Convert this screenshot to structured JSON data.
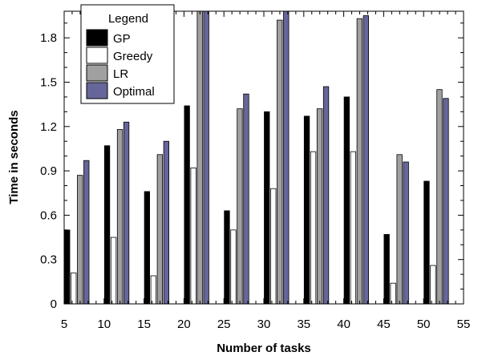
{
  "chart_data": {
    "type": "bar",
    "xlabel": "Number of tasks",
    "ylabel": "Time in seconds",
    "xlim": [
      5,
      55
    ],
    "ylim": [
      0,
      1.98
    ],
    "xticks": [
      5,
      10,
      15,
      20,
      25,
      30,
      35,
      40,
      45,
      50,
      55
    ],
    "yticks": [
      "0",
      "0.3",
      "0.6",
      "0.9",
      "1.2",
      "1.5",
      "1.8"
    ],
    "x": [
      5,
      10,
      15,
      20,
      25,
      30,
      35,
      40,
      45,
      50
    ],
    "series": [
      {
        "name": "GP",
        "color": "#000000",
        "values": [
          0.5,
          1.07,
          0.76,
          1.34,
          0.63,
          1.3,
          1.27,
          1.4,
          0.47,
          0.83
        ]
      },
      {
        "name": "Greedy",
        "color": "#ffffff",
        "values": [
          0.21,
          0.45,
          0.19,
          0.92,
          0.5,
          0.78,
          1.03,
          1.03,
          0.14,
          0.26
        ]
      },
      {
        "name": "LR",
        "color": "#a0a0a0",
        "values": [
          0.87,
          1.18,
          1.01,
          2.0,
          1.32,
          1.92,
          1.32,
          1.93,
          1.01,
          1.45
        ]
      },
      {
        "name": "Optimal",
        "color": "#66669a",
        "values": [
          0.97,
          1.23,
          1.1,
          2.0,
          1.42,
          2.0,
          1.47,
          1.95,
          0.96,
          1.39
        ]
      }
    ],
    "legend": {
      "title": "Legend",
      "position": "top-left"
    },
    "grid": false
  }
}
